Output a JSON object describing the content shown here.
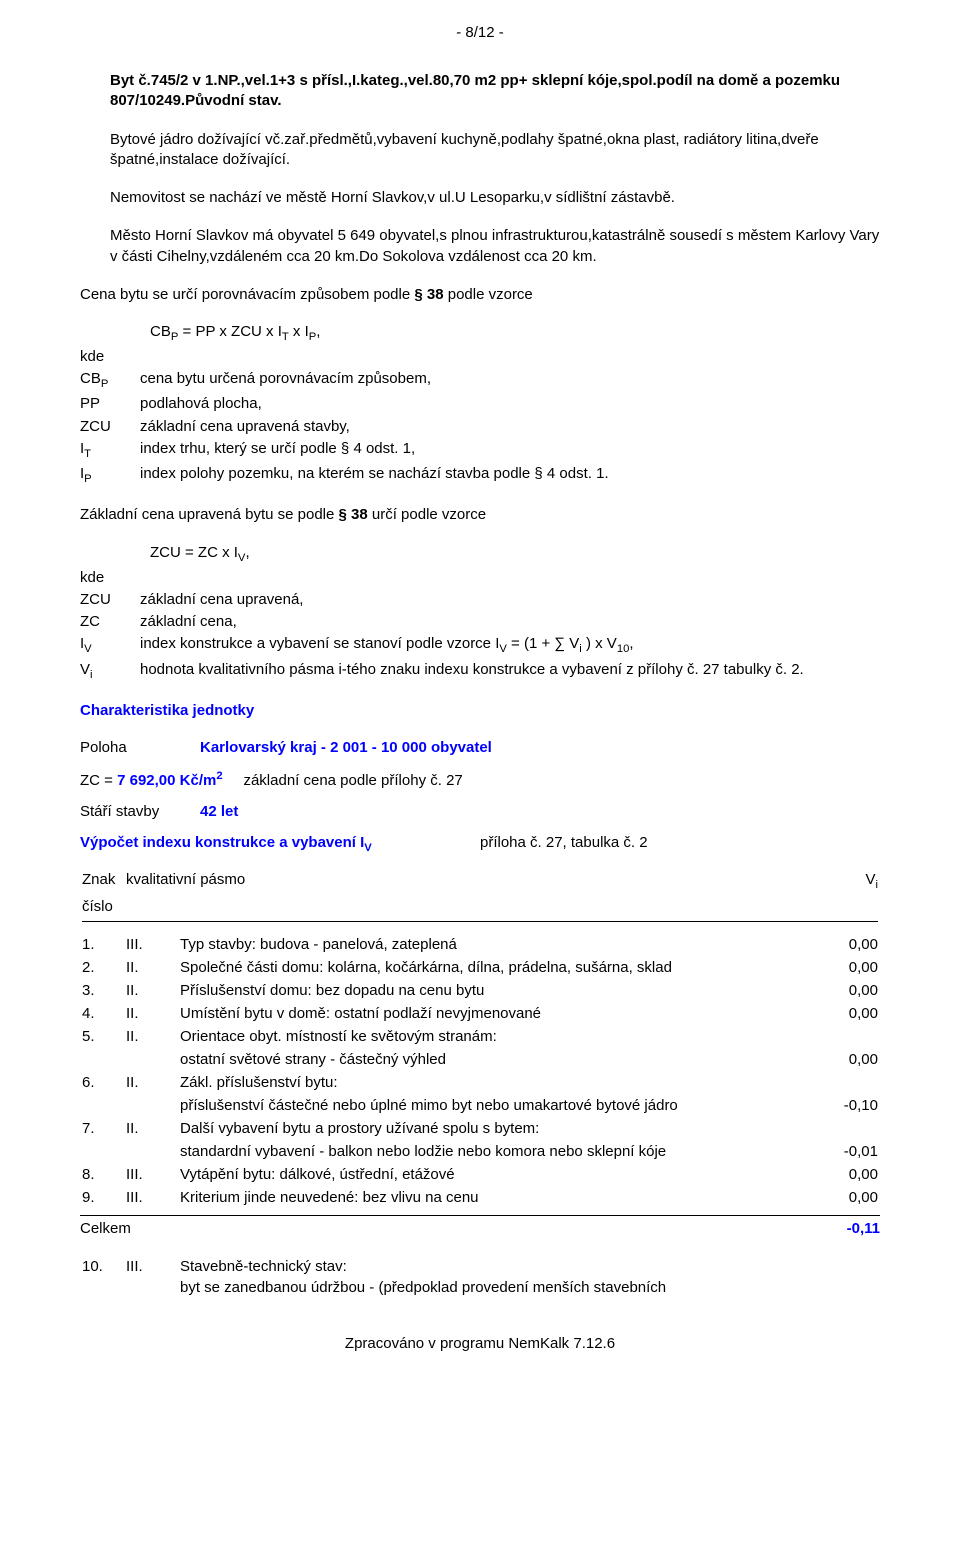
{
  "page_num": "- 8/12 -",
  "paragraphs": {
    "p1": "Byt č.745/2 v 1.NP.,vel.1+3 s přísl.,I.kateg.,vel.80,70 m2 pp+ sklepní kóje,spol.podíl na domě a pozemku 807/10249.Původní stav.",
    "p2": "Bytové jádro dožívající vč.zař.předmětů,vybavení kuchyně,podlahy špatné,okna plast, radiátory litina,dveře špatné,instalace dožívající.",
    "p3": "Nemovitost se nachází ve městě Horní Slavkov,v ul.U Lesoparku,v sídlištní zástavbě.",
    "p4": "Město Horní Slavkov má obyvatel 5 649 obyvatel,s plnou infrastrukturou,katastrálně sousedí s městem Karlovy Vary v části Cihelny,vzdáleném cca 20 km.Do Sokolova vzdálenost cca 20 km.",
    "p5": "Cena bytu se určí porovnávacím způsobem podle ",
    "p5b": "§ 38",
    "p5c": " podle vzorce",
    "p6": "Základní cena upravená bytu se podle ",
    "p6b": "§ 38",
    "p6c": " určí podle vzorce"
  },
  "formulas": {
    "f1": "CBP = PP x ZCU x IT x IP,",
    "f2": "ZCU = ZC x IV,"
  },
  "defs1": {
    "kde": "kde",
    "rows": [
      {
        "k": "CBP",
        "v": "cena bytu určená porovnávacím způsobem,"
      },
      {
        "k": "PP",
        "v": "podlahová plocha,"
      },
      {
        "k": "ZCU",
        "v": "základní cena upravená stavby,"
      },
      {
        "k": "IT",
        "v": "index trhu, který se určí podle § 4 odst. 1,"
      },
      {
        "k": "IP",
        "v": "index polohy pozemku, na kterém se nachází stavba podle § 4 odst. 1."
      }
    ]
  },
  "defs2": {
    "kde": "kde",
    "rows": [
      {
        "k": "ZCU",
        "v": "základní cena upravená,"
      },
      {
        "k": "ZC",
        "v": "základní cena,"
      },
      {
        "k": "IV",
        "v": "index konstrukce a vybavení se stanoví podle vzorce IV = (1 + ∑ Vi ) x V10,"
      },
      {
        "k": "Vi",
        "v": "hodnota kvalitativního pásma i-tého znaku indexu konstrukce a vybavení z přílohy č. 27 tabulky č. 2."
      }
    ]
  },
  "char_heading": "Charakteristika jednotky",
  "poloha_label": "Poloha",
  "poloha_value": "Karlovarský kraj - 2 001 - 10 000 obyvatel",
  "zc_label": "ZC = ",
  "zc_value": "7 692,00 Kč/m",
  "zc_exp": "2",
  "zc_desc": "základní cena podle přílohy č. 27",
  "stari_label": "Stáří stavby",
  "stari_value": "42 let",
  "vypocet_heading": "Výpočet indexu konstrukce a vybavení IV",
  "vypocet_ref": "příloha č. 27, tabulka č. 2",
  "table": {
    "h1": "Znak",
    "h1b": "číslo",
    "h2": "kvalitativní pásmo",
    "h3": "Vi",
    "rows": [
      {
        "n": "1.",
        "p": "III.",
        "d": "Typ stavby: budova - panelová, zateplená",
        "v": "0,00"
      },
      {
        "n": "2.",
        "p": "II.",
        "d": "Společné části domu: kolárna, kočárkárna, dílna, prádelna, sušárna, sklad",
        "v": "0,00"
      },
      {
        "n": "3.",
        "p": "II.",
        "d": "Příslušenství domu: bez dopadu na cenu bytu",
        "v": "0,00"
      },
      {
        "n": "4.",
        "p": "II.",
        "d": "Umístění bytu v domě: ostatní podlaží nevyjmenované",
        "v": "0,00"
      },
      {
        "n": "5.",
        "p": "II.",
        "d": "Orientace obyt. místností ke světovým stranám:\nostatní světové strany - částečný výhled",
        "v": "0,00"
      },
      {
        "n": "6.",
        "p": "II.",
        "d": "Zákl. příslušenství bytu:\npříslušenství částečné nebo úplné mimo byt nebo umakartové bytové jádro",
        "v": "-0,10"
      },
      {
        "n": "7.",
        "p": "II.",
        "d": "Další vybavení bytu a prostory užívané spolu s bytem:\nstandardní vybavení - balkon nebo lodžie nebo komora nebo sklepní kóje",
        "v": "-0,01"
      },
      {
        "n": "8.",
        "p": "III.",
        "d": "Vytápění bytu: dálkové, ústřední, etážové",
        "v": "0,00"
      },
      {
        "n": "9.",
        "p": "III.",
        "d": "Kriterium jinde neuvedené: bez vlivu na cenu",
        "v": "0,00"
      }
    ],
    "celkem_label": "Celkem",
    "celkem_value": "-0,11",
    "row10": {
      "n": "10.",
      "p": "III.",
      "d": "Stavebně-technický stav:\nbyt se zanedbanou údržbou - (předpoklad provedení menších stavebních"
    }
  },
  "footer": "Zpracováno v programu NemKalk 7.12.6"
}
